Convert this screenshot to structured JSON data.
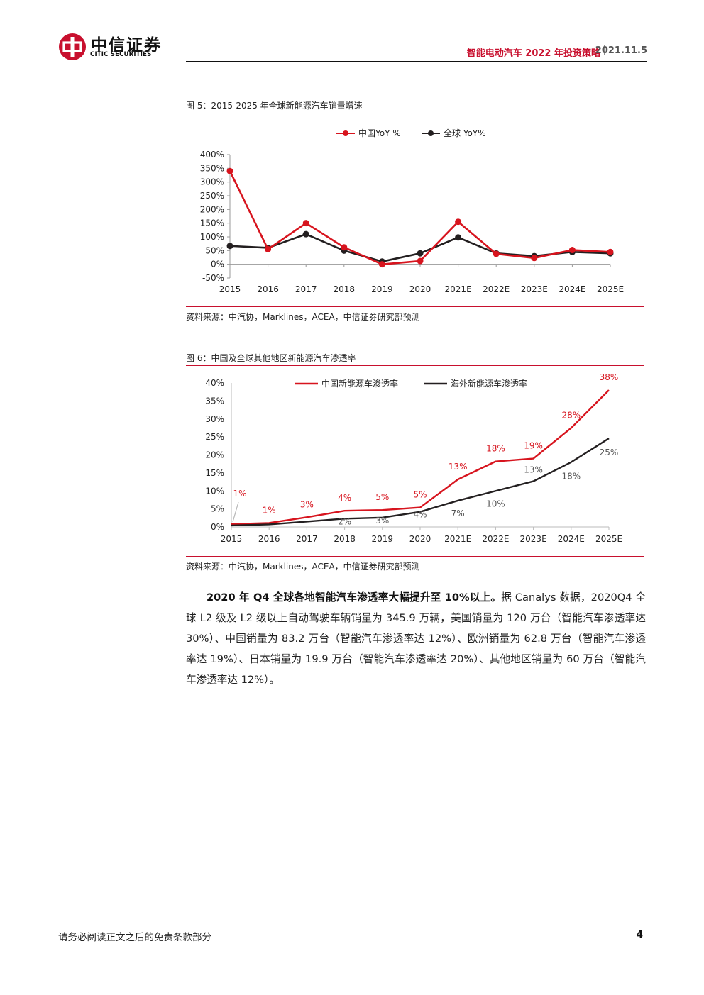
{
  "header": {
    "logo_cn": "中信证券",
    "logo_en": "CITIC SECURITIES",
    "title": "智能电动汽车 2022 年投资策略",
    "separator": "|",
    "date": "2021.11.5",
    "brand_color": "#c8102e"
  },
  "figure5": {
    "title": "图 5：2015-2025 年全球新能源汽车销量增速",
    "source": "资料来源：中汽协，Marklines，ACEA，中信证券研究部预测"
  },
  "figure6": {
    "title": "图 6：中国及全球其他地区新能源汽车渗透率",
    "source": "资料来源：中汽协，Marklines，ACEA，中信证券研究部预测"
  },
  "chart_data": [
    {
      "type": "line",
      "title": "",
      "xlabel": "",
      "ylabel": "",
      "categories": [
        "2015",
        "2016",
        "2017",
        "2018",
        "2019",
        "2020",
        "2021E",
        "2022E",
        "2023E",
        "2024E",
        "2025E"
      ],
      "y_ticks": [
        "400%",
        "350%",
        "300%",
        "250%",
        "200%",
        "150%",
        "100%",
        "50%",
        "0%",
        "-50%"
      ],
      "ylim": [
        -50,
        400
      ],
      "grid": false,
      "legend_position": "top-center",
      "series": [
        {
          "name": "中国YoY %",
          "color": "#d7141e",
          "marker": "circle",
          "values": [
            340,
            55,
            150,
            62,
            0,
            12,
            155,
            38,
            23,
            52,
            45
          ]
        },
        {
          "name": "全球 YoY%",
          "color": "#231f20",
          "marker": "circle",
          "values": [
            67,
            60,
            110,
            50,
            10,
            40,
            98,
            40,
            30,
            45,
            40
          ]
        }
      ]
    },
    {
      "type": "line",
      "title": "",
      "xlabel": "",
      "ylabel": "",
      "categories": [
        "2015",
        "2016",
        "2017",
        "2018",
        "2019",
        "2020",
        "2021E",
        "2022E",
        "2023E",
        "2024E",
        "2025E"
      ],
      "y_ticks": [
        "40%",
        "35%",
        "30%",
        "25%",
        "20%",
        "15%",
        "10%",
        "5%",
        "0%"
      ],
      "ylim": [
        0,
        40
      ],
      "grid": false,
      "legend_position": "top-center",
      "series": [
        {
          "name": "中国新能源车渗透率",
          "color": "#d7141e",
          "values": [
            0.8,
            1.1,
            2.7,
            4.5,
            4.7,
            5.4,
            13.2,
            18.2,
            19.0,
            27.5,
            38.0
          ],
          "labels": [
            "1%",
            "1%",
            "3%",
            "4%",
            "5%",
            "5%",
            "13%",
            "18%",
            "19%",
            "28%",
            "38%"
          ]
        },
        {
          "name": "海外新能源车渗透率",
          "color": "#231f20",
          "values": [
            0.4,
            0.7,
            1.5,
            2.3,
            2.6,
            4.2,
            7.3,
            10.0,
            12.7,
            18.0,
            24.6
          ],
          "labels": [
            "",
            "",
            "",
            "2%",
            "3%",
            "4%",
            "7%",
            "10%",
            "13%",
            "18%",
            "25%"
          ]
        }
      ]
    }
  ],
  "body": {
    "lead": "2020 年 Q4 全球各地智能汽车渗透率大幅提升至 10%以上。",
    "text": "据 Canalys 数据，2020Q4 全球 L2 级及 L2 级以上自动驾驶车辆销量为 345.9 万辆，美国销量为 120 万台（智能汽车渗透率达 30%）、中国销量为 83.2 万台（智能汽车渗透率达 12%）、欧洲销量为 62.8 万台（智能汽车渗透率达 19%）、日本销量为 19.9 万台（智能汽车渗透率达 20%）、其他地区销量为 60 万台（智能汽车渗透率达 12%）。"
  },
  "footer": {
    "disclaimer": "请务必阅读正文之后的免责条款部分",
    "page": "4"
  }
}
